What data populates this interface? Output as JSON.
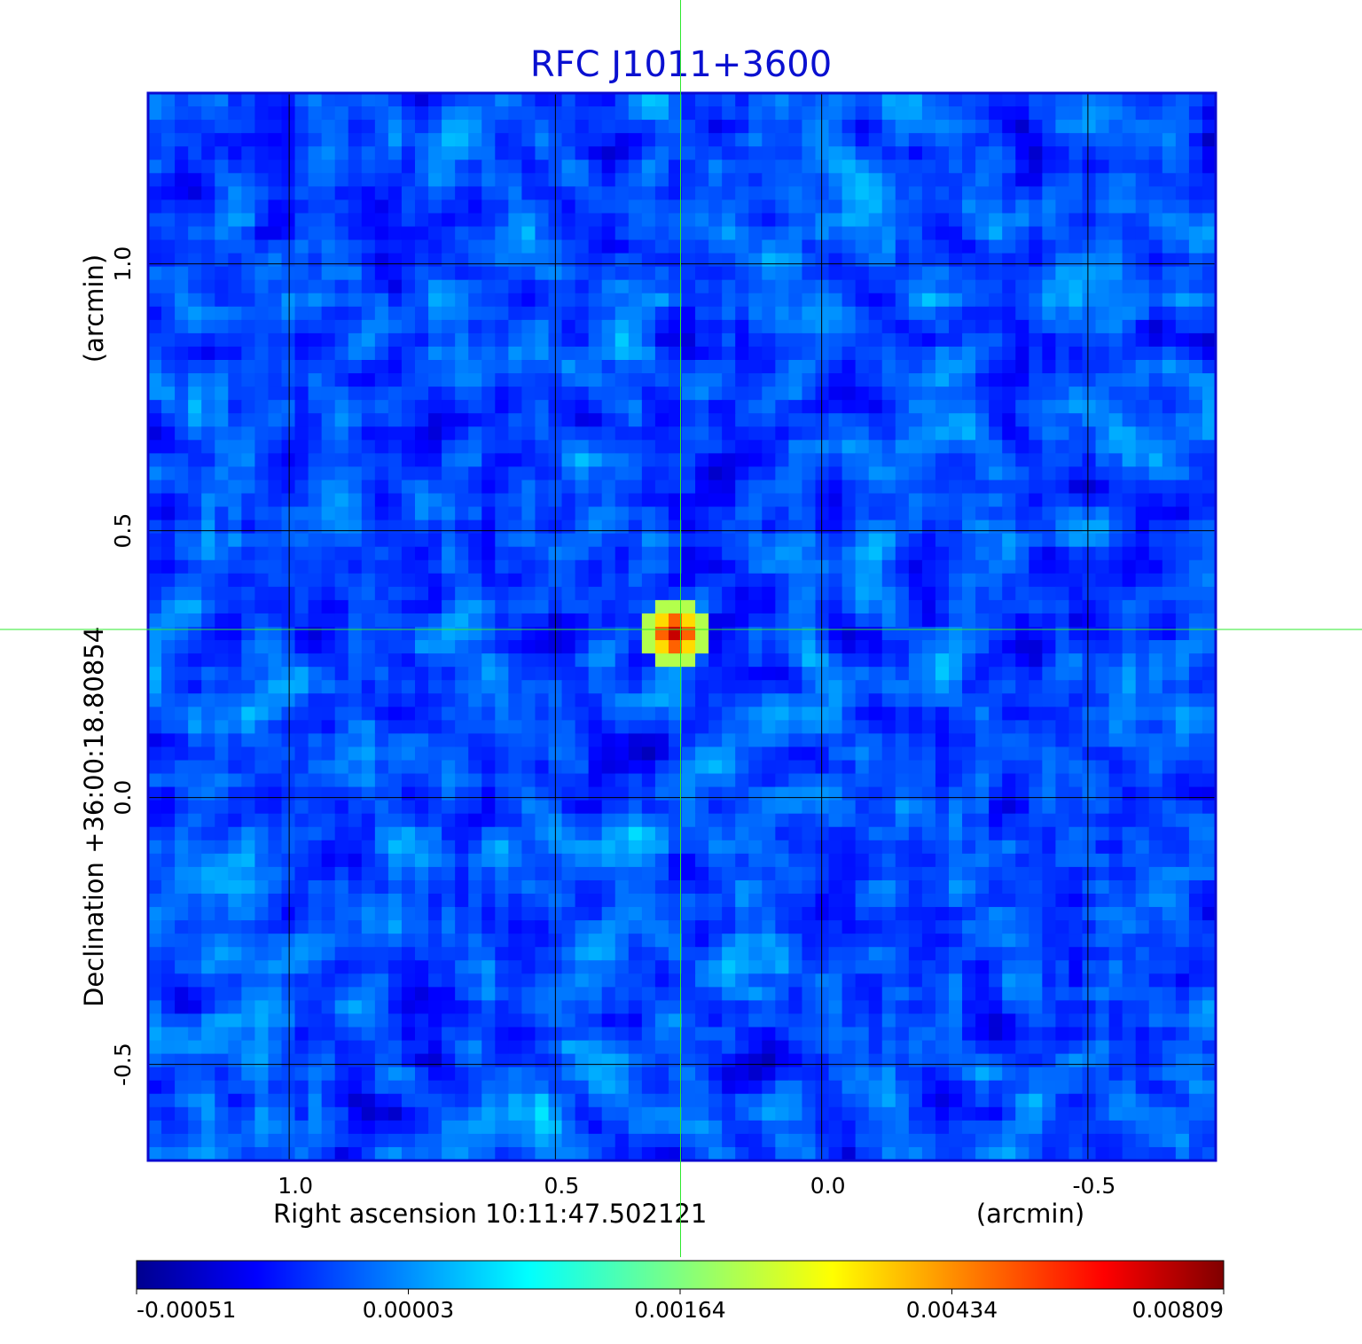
{
  "colors": {
    "title": "#0a10d0",
    "frame": "#0a0ad2",
    "grid": "#000000",
    "crosshair": "#2ee82e",
    "background": "#ffffff"
  },
  "chart_data": {
    "type": "heatmap",
    "title": "RFC J1011+3600",
    "xlabel": "Right ascension  10:11:47.502121",
    "xunit": "(arcmin)",
    "ylabel": "Declination  +36:00:18.80854",
    "yunit": "(arcmin)",
    "x_ticks": [
      1.0,
      0.5,
      0.0,
      -0.5
    ],
    "x_tick_labels": [
      "1.0",
      "0.5",
      "0.0",
      "-0.5"
    ],
    "y_ticks": [
      1.0,
      0.5,
      0.0,
      -0.5
    ],
    "y_tick_labels": [
      "1.0",
      "0.5",
      "0.0",
      "-0.5"
    ],
    "xlim": [
      1.265,
      -0.74
    ],
    "ylim": [
      -0.68,
      1.32
    ],
    "x_reversed": true,
    "grid": true,
    "crosshair": {
      "x": 0.265,
      "y": 0.315
    },
    "source_peak": {
      "x": 0.265,
      "y": 0.315,
      "value": 0.00809
    },
    "colormap": "jet",
    "colorbar": {
      "orientation": "horizontal",
      "placement": "bottom",
      "tick_labels": [
        "-0.00051",
        "0.00003",
        "0.00164",
        "0.00434",
        "0.00809"
      ],
      "min": -0.00051,
      "max": 0.00809
    }
  }
}
